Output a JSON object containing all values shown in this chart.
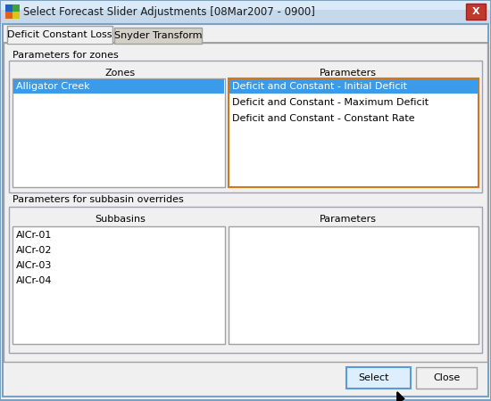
{
  "title": "Select Forecast Slider Adjustments [08Mar2007 - 0900]",
  "bg_color": "#dce6f0",
  "dialog_bg": "#ece9d8",
  "tab1": "Deficit Constant Loss",
  "tab2": "Snyder Transform",
  "zones_section_label": "Parameters for zones",
  "zones_col_label": "Zones",
  "params_col_label": "Parameters",
  "zones_items": [
    "Alligator Creek"
  ],
  "params_items": [
    "Deficit and Constant - Initial Deficit",
    "Deficit and Constant - Maximum Deficit",
    "Deficit and Constant - Constant Rate"
  ],
  "subbasin_section_label": "Parameters for subbasin overrides",
  "subbasins_col_label": "Subbasins",
  "subparams_col_label": "Parameters",
  "subbasins_items": [
    "AlCr-01",
    "AlCr-02",
    "AlCr-03",
    "AlCr-04"
  ],
  "btn_select": "Select",
  "btn_close": "Close",
  "selection_color": "#3c9be8",
  "selection_text_color": "#ffffff",
  "listbox_bg": "#ffffff",
  "text_color": "#000000",
  "font_size": 8.0,
  "title_font_size": 8.5,
  "titlebar_bg": "#c5d9ea",
  "titlebar_gradient": "#aecce0",
  "close_btn_color": "#c0392b",
  "tab_active_bg": "#f0f0f0",
  "tab_inactive_bg": "#d4d0c8",
  "section_border": "#a0a0b0",
  "params_lb_border": "#d07820",
  "select_btn_border": "#5b9bd5",
  "select_btn_bg": "#ddeeff",
  "close_btn_bg": "#f0f0f0",
  "outer_border": "#7ba0c0",
  "icon_colors": [
    "#2060c0",
    "#40a040",
    "#e06020",
    "#e0c020"
  ]
}
